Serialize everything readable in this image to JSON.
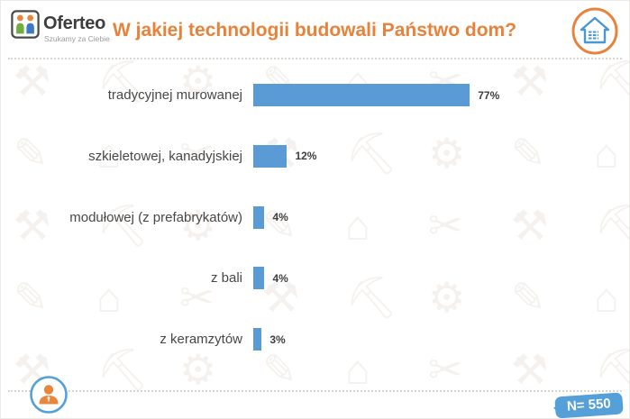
{
  "header": {
    "logo": {
      "brand": "Oferteo",
      "tagline": "Szukamy za Ciebie"
    },
    "title": "W jakiej technologii budowali Państwo dom?"
  },
  "chart_data": {
    "type": "bar",
    "orientation": "horizontal",
    "title": "W jakiej technologii budowali Państwo dom?",
    "categories": [
      "tradycyjnej murowanej",
      "szkieletowej, kanadyjskiej",
      "modułowej (z prefabrykatów)",
      "z bali",
      "z keramzytów"
    ],
    "values": [
      77,
      12,
      4,
      4,
      3
    ],
    "value_labels": [
      "77%",
      "12%",
      "4%",
      "4%",
      "3%"
    ],
    "xlabel": "",
    "ylabel": "",
    "xlim": [
      0,
      100
    ],
    "grid": false,
    "legend": false,
    "bar_color": "#5b9bd5",
    "sample_size": "N= 550"
  },
  "footer": {
    "sample_badge": "N= 550"
  },
  "colors": {
    "accent_orange": "#e8813a",
    "accent_blue": "#55a0d9",
    "bar_blue": "#5b9bd5",
    "label_gray": "#474747",
    "pattern_gray": "#f4f1ee"
  },
  "icons": {
    "logo_icon": "two-people-icon",
    "header_right": "house-icon",
    "footer_left": "person-icon",
    "background_glyphs": [
      "⚒",
      "⛏",
      "⚙",
      "✎",
      "⌂",
      "✂"
    ]
  }
}
